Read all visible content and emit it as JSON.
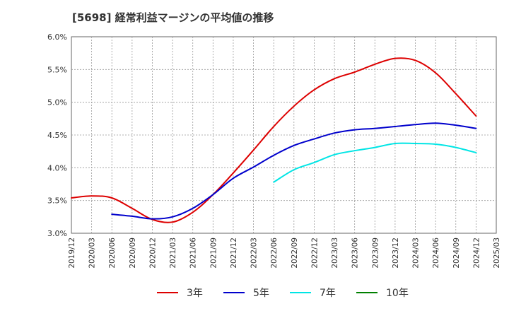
{
  "chart_data": {
    "type": "line",
    "title": "[5698]  経常利益マージンの平均値の推移",
    "xlabel": "",
    "ylabel": "",
    "x": [
      "2019/12",
      "2020/03",
      "2020/06",
      "2020/09",
      "2020/12",
      "2021/03",
      "2021/06",
      "2021/09",
      "2021/12",
      "2022/03",
      "2022/06",
      "2022/09",
      "2022/12",
      "2023/03",
      "2023/06",
      "2023/09",
      "2023/12",
      "2024/03",
      "2024/06",
      "2024/09",
      "2024/12",
      "2025/03"
    ],
    "ylim": [
      3.0,
      6.0
    ],
    "yticks": [
      "6.0%",
      "5.5%",
      "5.0%",
      "4.5%",
      "4.0%",
      "3.5%",
      "3.0%"
    ],
    "grid": true,
    "legend_position": "bottom",
    "series": [
      {
        "name": "3年",
        "color": "#dd0000",
        "values": [
          3.54,
          3.57,
          3.54,
          3.38,
          3.21,
          3.17,
          3.32,
          3.59,
          3.92,
          4.27,
          4.63,
          4.94,
          5.19,
          5.36,
          5.46,
          5.58,
          5.67,
          5.64,
          5.45,
          5.13,
          4.79,
          null
        ]
      },
      {
        "name": "5年",
        "color": "#0000cc",
        "values": [
          null,
          null,
          3.29,
          3.26,
          3.22,
          3.25,
          3.38,
          3.59,
          3.84,
          4.01,
          4.19,
          4.34,
          4.44,
          4.53,
          4.58,
          4.6,
          4.63,
          4.66,
          4.68,
          4.65,
          4.6,
          null
        ]
      },
      {
        "name": "7年",
        "color": "#00e5e5",
        "values": [
          null,
          null,
          null,
          null,
          null,
          null,
          null,
          null,
          null,
          null,
          3.78,
          3.97,
          4.08,
          4.2,
          4.26,
          4.31,
          4.37,
          4.37,
          4.36,
          4.31,
          4.23,
          null
        ]
      },
      {
        "name": "10年",
        "color": "#008000",
        "values": [
          null,
          null,
          null,
          null,
          null,
          null,
          null,
          null,
          null,
          null,
          null,
          null,
          null,
          null,
          null,
          null,
          null,
          null,
          null,
          null,
          null,
          null
        ]
      }
    ]
  }
}
